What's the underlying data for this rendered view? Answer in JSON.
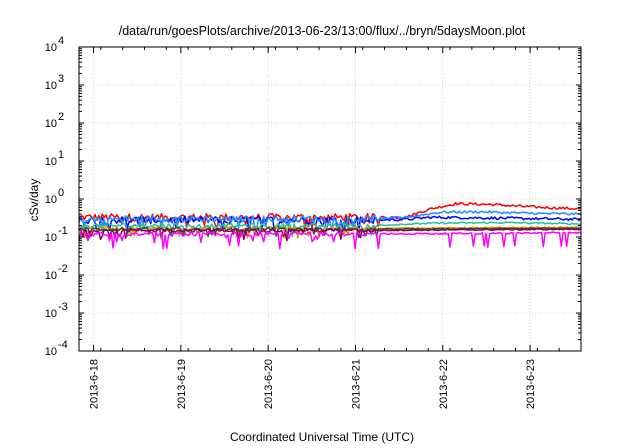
{
  "chart_data": {
    "type": "line",
    "title": "/data/run/goesPlots/archive/2013-06-23/13:00/flux/../bryn/5daysMoon.plot",
    "xlabel": "Coordinated Universal Time (UTC)",
    "ylabel": "cSv/day",
    "y_scale": "log",
    "ylim_exponents": [
      -4,
      4
    ],
    "y_tick_exponents": [
      -4,
      -3,
      -2,
      -1,
      0,
      1,
      2,
      3,
      4
    ],
    "x_range_days": [
      "2013-06-17 20:00",
      "2013-06-23 14:00"
    ],
    "x_ticks": [
      "2013-6-18",
      "2013-6-19",
      "2013-6-20",
      "2013-6-21",
      "2013-6-22",
      "2013-6-23"
    ],
    "grid": true,
    "legend": "none",
    "series": [
      {
        "color": "#ff0000",
        "profile": [
          [
            0,
            0.33
          ],
          [
            0.58,
            0.33
          ],
          [
            0.65,
            0.33
          ],
          [
            0.7,
            0.55
          ],
          [
            0.75,
            0.75
          ],
          [
            0.82,
            0.72
          ],
          [
            0.9,
            0.62
          ],
          [
            1.0,
            0.55
          ]
        ],
        "noise": 0.45,
        "dips": false
      },
      {
        "color": "#0000ff",
        "profile": [
          [
            0,
            0.28
          ],
          [
            0.58,
            0.28
          ],
          [
            0.65,
            0.29
          ],
          [
            0.7,
            0.33
          ],
          [
            0.8,
            0.32
          ],
          [
            1.0,
            0.29
          ]
        ],
        "noise": 0.45,
        "dips": false
      },
      {
        "color": "#1e90ff",
        "profile": [
          [
            0,
            0.3
          ],
          [
            0.58,
            0.3
          ],
          [
            0.65,
            0.33
          ],
          [
            0.72,
            0.45
          ],
          [
            0.8,
            0.46
          ],
          [
            0.9,
            0.42
          ],
          [
            1.0,
            0.4
          ]
        ],
        "noise": 0.4,
        "dips": false
      },
      {
        "color": "#20c0a0",
        "profile": [
          [
            0,
            0.2
          ],
          [
            0.58,
            0.2
          ],
          [
            0.7,
            0.23
          ],
          [
            0.85,
            0.24
          ],
          [
            1.0,
            0.22
          ]
        ],
        "noise": 0.25,
        "dips": false
      },
      {
        "color": "#c8a000",
        "profile": [
          [
            0,
            0.17
          ],
          [
            0.6,
            0.17
          ],
          [
            1.0,
            0.18
          ]
        ],
        "noise": 0.2,
        "dips": false
      },
      {
        "color": "#404040",
        "profile": [
          [
            0,
            0.16
          ],
          [
            0.6,
            0.16
          ],
          [
            1.0,
            0.17
          ]
        ],
        "noise": 0.2,
        "dips": false
      },
      {
        "color": "#8b0050",
        "profile": [
          [
            0,
            0.15
          ],
          [
            0.6,
            0.15
          ],
          [
            1.0,
            0.16
          ]
        ],
        "noise": 0.2,
        "dips": false
      },
      {
        "color": "#ff00ff",
        "profile": [
          [
            0,
            0.12
          ],
          [
            0.6,
            0.12
          ],
          [
            1.0,
            0.13
          ]
        ],
        "noise": 0.25,
        "dips": true
      }
    ]
  }
}
